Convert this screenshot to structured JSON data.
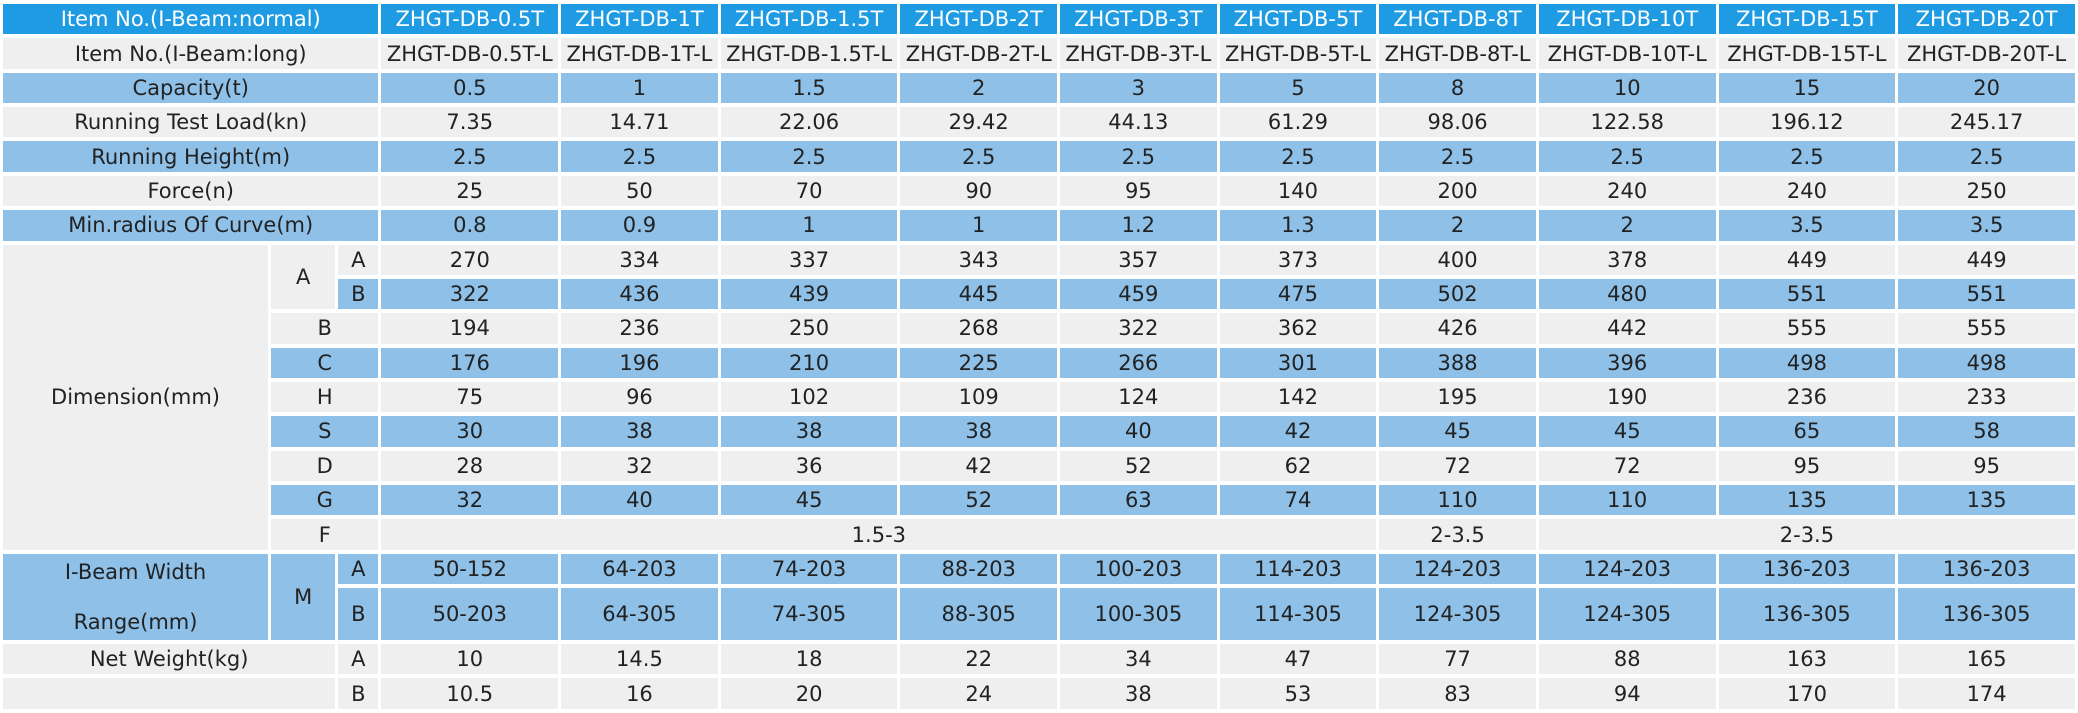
{
  "header": {
    "label": "Item No.(I-Beam:normal)",
    "models": [
      "ZHGT-DB-0.5T",
      "ZHGT-DB-1T",
      "ZHGT-DB-1.5T",
      "ZHGT-DB-2T",
      "ZHGT-DB-3T",
      "ZHGT-DB-5T",
      "ZHGT-DB-8T",
      "ZHGT-DB-10T",
      "ZHGT-DB-15T",
      "ZHGT-DB-20T"
    ]
  },
  "long_row": {
    "label": "Item No.(I-Beam:long)",
    "values": [
      "ZHGT-DB-0.5T-L",
      "ZHGT-DB-1T-L",
      "ZHGT-DB-1.5T-L",
      "ZHGT-DB-2T-L",
      "ZHGT-DB-3T-L",
      "ZHGT-DB-5T-L",
      "ZHGT-DB-8T-L",
      "ZHGT-DB-10T-L",
      "ZHGT-DB-15T-L",
      "ZHGT-DB-20T-L"
    ]
  },
  "capacity": {
    "label": "Capacity(t)",
    "values": [
      "0.5",
      "1",
      "1.5",
      "2",
      "3",
      "5",
      "8",
      "10",
      "15",
      "20"
    ]
  },
  "test_load": {
    "label": "Running Test Load(kn)",
    "values": [
      "7.35",
      "14.71",
      "22.06",
      "29.42",
      "44.13",
      "61.29",
      "98.06",
      "122.58",
      "196.12",
      "245.17"
    ]
  },
  "height": {
    "label": "Running Height(m)",
    "values": [
      "2.5",
      "2.5",
      "2.5",
      "2.5",
      "2.5",
      "2.5",
      "2.5",
      "2.5",
      "2.5",
      "2.5"
    ]
  },
  "force": {
    "label": "Force(n)",
    "values": [
      "25",
      "50",
      "70",
      "90",
      "95",
      "140",
      "200",
      "240",
      "240",
      "250"
    ]
  },
  "radius": {
    "label": "Min.radius Of Curve(m)",
    "values": [
      "0.8",
      "0.9",
      "1",
      "1",
      "1.2",
      "1.3",
      "2",
      "2",
      "3.5",
      "3.5"
    ]
  },
  "dimension": {
    "label": "Dimension(mm)",
    "rows": [
      {
        "group": "A",
        "sub": "A",
        "values": [
          "270",
          "334",
          "337",
          "343",
          "357",
          "373",
          "400",
          "378",
          "449",
          "449"
        ]
      },
      {
        "group": "",
        "sub": "B",
        "values": [
          "322",
          "436",
          "439",
          "445",
          "459",
          "475",
          "502",
          "480",
          "551",
          "551"
        ]
      },
      {
        "sub": "B",
        "values": [
          "194",
          "236",
          "250",
          "268",
          "322",
          "362",
          "426",
          "442",
          "555",
          "555"
        ]
      },
      {
        "sub": "C",
        "values": [
          "176",
          "196",
          "210",
          "225",
          "266",
          "301",
          "388",
          "396",
          "498",
          "498"
        ]
      },
      {
        "sub": "H",
        "values": [
          "75",
          "96",
          "102",
          "109",
          "124",
          "142",
          "195",
          "190",
          "236",
          "233"
        ]
      },
      {
        "sub": "S",
        "values": [
          "30",
          "38",
          "38",
          "38",
          "40",
          "42",
          "45",
          "45",
          "65",
          "58"
        ]
      },
      {
        "sub": "D",
        "values": [
          "28",
          "32",
          "36",
          "42",
          "52",
          "62",
          "72",
          "72",
          "95",
          "95"
        ]
      },
      {
        "sub": "G",
        "values": [
          "32",
          "40",
          "45",
          "52",
          "63",
          "74",
          "110",
          "110",
          "135",
          "135"
        ]
      }
    ],
    "f_row": {
      "sub": "F",
      "spans": [
        "1.5-3",
        "2-3.5",
        "2-3.5"
      ]
    }
  },
  "ibeam": {
    "label_line1": "I-Beam Width",
    "label_line2": "Range(mm)",
    "group": "M",
    "a": {
      "sub": "A",
      "values": [
        "50-152",
        "64-203",
        "74-203",
        "88-203",
        "100-203",
        "114-203",
        "124-203",
        "124-203",
        "136-203",
        "136-203"
      ]
    },
    "b": {
      "sub": "B",
      "values": [
        "50-203",
        "64-305",
        "74-305",
        "88-305",
        "100-305",
        "114-305",
        "124-305",
        "124-305",
        "136-305",
        "136-305"
      ]
    }
  },
  "net_weight": {
    "label": "Net Weight(kg)",
    "a": {
      "sub": "A",
      "values": [
        "10",
        "14.5",
        "18",
        "22",
        "34",
        "47",
        "77",
        "88",
        "163",
        "165"
      ]
    },
    "b": {
      "sub": "B",
      "values": [
        "10.5",
        "16",
        "20",
        "24",
        "38",
        "53",
        "83",
        "94",
        "170",
        "174"
      ]
    }
  }
}
